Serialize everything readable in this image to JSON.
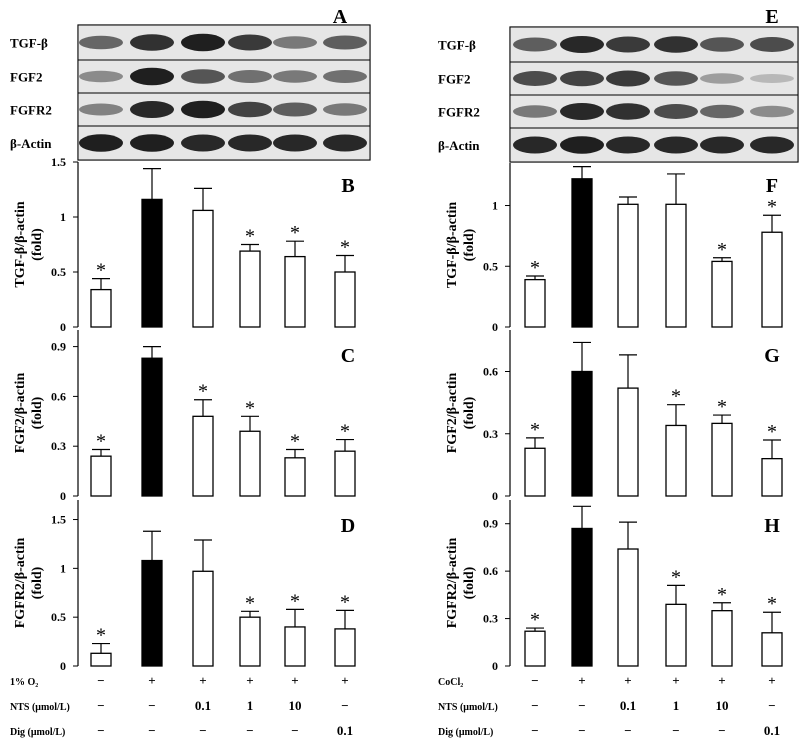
{
  "chart_data": [
    {
      "type": "blot",
      "panel_letter": "A",
      "rows": [
        {
          "label": "TGF-β",
          "bands": [
            0.55,
            0.85,
            0.95,
            0.8,
            0.45,
            0.6
          ]
        },
        {
          "label": "FGF2",
          "bands": [
            0.35,
            0.95,
            0.65,
            0.5,
            0.45,
            0.5
          ]
        },
        {
          "label": "FGFR2",
          "bands": [
            0.4,
            0.9,
            0.95,
            0.75,
            0.6,
            0.45
          ]
        },
        {
          "label": "β-Actin",
          "bands": [
            0.95,
            0.95,
            0.9,
            0.9,
            0.9,
            0.9
          ]
        }
      ]
    },
    {
      "type": "bar",
      "panel_letter": "B",
      "ylabel": [
        "TGF-β/β-actin",
        "(fold)"
      ],
      "ylim": [
        0,
        1.5
      ],
      "yticks": [
        0,
        0.5,
        1,
        1.5
      ],
      "yticklabels": [
        "0",
        "0.5",
        "1",
        "1.5"
      ],
      "values": [
        0.34,
        1.16,
        1.06,
        0.69,
        0.64,
        0.5
      ],
      "errors": [
        0.1,
        0.28,
        0.2,
        0.06,
        0.14,
        0.15
      ],
      "filled": [
        false,
        true,
        false,
        false,
        false,
        false
      ],
      "significant": [
        true,
        false,
        false,
        true,
        true,
        true
      ]
    },
    {
      "type": "bar",
      "panel_letter": "C",
      "ylabel": [
        "FGF2/β-actin",
        "(fold)"
      ],
      "ylim": [
        0,
        1.0
      ],
      "yticks": [
        0,
        0.3,
        0.6,
        0.9
      ],
      "yticklabels": [
        "0",
        "0.3",
        "0.6",
        "0.9"
      ],
      "values": [
        0.24,
        0.83,
        0.48,
        0.39,
        0.23,
        0.27
      ],
      "errors": [
        0.04,
        0.07,
        0.1,
        0.09,
        0.05,
        0.07
      ],
      "filled": [
        false,
        true,
        false,
        false,
        false,
        false
      ],
      "significant": [
        true,
        false,
        true,
        true,
        true,
        true
      ]
    },
    {
      "type": "bar",
      "panel_letter": "D",
      "ylabel": [
        "FGFR2/β-actin",
        "(fold)"
      ],
      "ylim": [
        0,
        1.7
      ],
      "yticks": [
        0,
        0.5,
        1,
        1.5
      ],
      "yticklabels": [
        "0",
        "0.5",
        "1",
        "1.5"
      ],
      "values": [
        0.13,
        1.08,
        0.97,
        0.5,
        0.4,
        0.38
      ],
      "errors": [
        0.1,
        0.3,
        0.32,
        0.06,
        0.18,
        0.19
      ],
      "filled": [
        false,
        true,
        false,
        false,
        false,
        false
      ],
      "significant": [
        true,
        false,
        false,
        true,
        true,
        true
      ]
    },
    {
      "type": "blot",
      "panel_letter": "E",
      "rows": [
        {
          "label": "TGF-β",
          "bands": [
            0.6,
            0.9,
            0.8,
            0.85,
            0.65,
            0.7
          ]
        },
        {
          "label": "FGF2",
          "bands": [
            0.7,
            0.75,
            0.8,
            0.65,
            0.25,
            0.1
          ]
        },
        {
          "label": "FGFR2",
          "bands": [
            0.45,
            0.9,
            0.85,
            0.7,
            0.55,
            0.35
          ]
        },
        {
          "label": "β-Actin",
          "bands": [
            0.9,
            0.95,
            0.9,
            0.9,
            0.9,
            0.9
          ]
        }
      ]
    },
    {
      "type": "bar",
      "panel_letter": "F",
      "ylabel": [
        "TGF-β/β-actin",
        "(fold)"
      ],
      "ylim": [
        0,
        1.35
      ],
      "yticks": [
        0,
        0.5,
        1
      ],
      "yticklabels": [
        "0",
        "0.5",
        "1"
      ],
      "values": [
        0.39,
        1.22,
        1.01,
        1.01,
        0.54,
        0.78
      ],
      "errors": [
        0.03,
        0.1,
        0.06,
        0.25,
        0.03,
        0.14
      ],
      "filled": [
        false,
        true,
        false,
        false,
        false,
        false
      ],
      "significant": [
        true,
        false,
        false,
        false,
        true,
        true
      ]
    },
    {
      "type": "bar",
      "panel_letter": "G",
      "ylabel": [
        "FGF2/β-actin",
        "(fold)"
      ],
      "ylim": [
        0,
        0.8
      ],
      "yticks": [
        0,
        0.3,
        0.6
      ],
      "yticklabels": [
        "0",
        "0.3",
        "0.6"
      ],
      "values": [
        0.23,
        0.6,
        0.52,
        0.34,
        0.35,
        0.18
      ],
      "errors": [
        0.05,
        0.14,
        0.16,
        0.1,
        0.04,
        0.09
      ],
      "filled": [
        false,
        true,
        false,
        false,
        false,
        false
      ],
      "significant": [
        true,
        false,
        false,
        true,
        true,
        true
      ]
    },
    {
      "type": "bar",
      "panel_letter": "H",
      "ylabel": [
        "FGFR2/β-actin",
        "(fold)"
      ],
      "ylim": [
        0,
        1.05
      ],
      "yticks": [
        0,
        0.3,
        0.6,
        0.9
      ],
      "yticklabels": [
        "0",
        "0.3",
        "0.6",
        "0.9"
      ],
      "values": [
        0.22,
        0.87,
        0.74,
        0.39,
        0.35,
        0.21
      ],
      "errors": [
        0.02,
        0.14,
        0.17,
        0.12,
        0.05,
        0.13
      ],
      "filled": [
        false,
        true,
        false,
        false,
        false,
        false
      ],
      "significant": [
        true,
        false,
        false,
        true,
        true,
        true
      ]
    }
  ],
  "significance_marker": "*",
  "treatment_table": {
    "left": [
      {
        "label": "1% O₂",
        "values": [
          "−",
          "+",
          "+",
          "+",
          "+",
          "+"
        ]
      },
      {
        "label": "NTS (μmol/L)",
        "values": [
          "−",
          "−",
          "0.1",
          "1",
          "10",
          "−"
        ]
      },
      {
        "label": "Dig  (μmol/L)",
        "values": [
          "−",
          "−",
          "−",
          "−",
          "−",
          "0.1"
        ]
      }
    ],
    "right": [
      {
        "label": "CoCl₂",
        "values": [
          "−",
          "+",
          "+",
          "+",
          "+",
          "+"
        ]
      },
      {
        "label": "NTS (μmol/L)",
        "values": [
          "−",
          "−",
          "0.1",
          "1",
          "10",
          "−"
        ]
      },
      {
        "label": "Dig  (μmol/L)",
        "values": [
          "−",
          "−",
          "−",
          "−",
          "−",
          "0.1"
        ]
      }
    ]
  }
}
